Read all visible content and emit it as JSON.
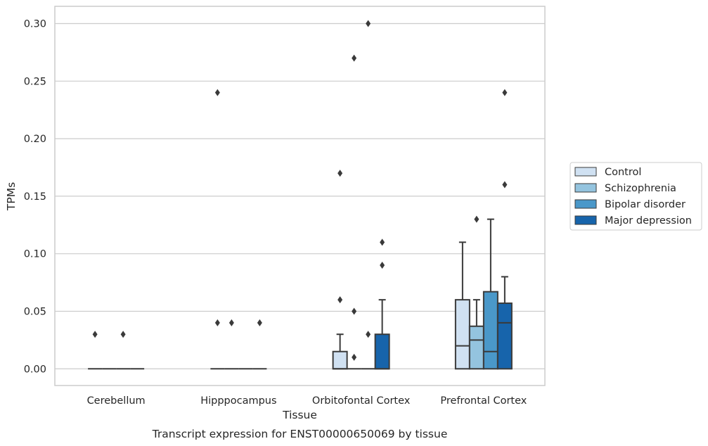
{
  "chart_data": {
    "type": "box",
    "title": "Transcript expression for ENST00000650069 by tissue",
    "xlabel": "Tissue",
    "ylabel": "TPMs",
    "ylim": [
      -0.0145,
      0.315
    ],
    "yticks": [
      "0.00",
      "0.05",
      "0.10",
      "0.15",
      "0.20",
      "0.25",
      "0.30"
    ],
    "categories": [
      "Cerebellum",
      "Hipppocampus",
      "Orbitofontal Cortex",
      "Prefrontal Cortex"
    ],
    "grid": true,
    "legend_position": "right",
    "colors": {
      "Control": "#d0e1f2",
      "Schizophrenia": "#94c4df",
      "Bipolar disorder": "#4a98c9",
      "Major depression": "#1764ab",
      "edge": "#3a3a3a",
      "grid": "#cccccc"
    },
    "series": [
      {
        "name": "Control",
        "boxes": [
          {
            "q1": 0,
            "median": 0,
            "q3": 0,
            "whislo": 0,
            "whishi": 0,
            "fliers": [
              0.03
            ]
          },
          {
            "q1": 0,
            "median": 0,
            "q3": 0,
            "whislo": 0,
            "whishi": 0,
            "fliers": [
              0.24,
              0.04
            ]
          },
          {
            "q1": 0,
            "median": 0,
            "q3": 0.015,
            "whislo": 0,
            "whishi": 0.03,
            "fliers": [
              0.17,
              0.06
            ]
          },
          {
            "q1": 0,
            "median": 0.02,
            "q3": 0.06,
            "whislo": 0,
            "whishi": 0.11,
            "fliers": []
          }
        ]
      },
      {
        "name": "Schizophrenia",
        "boxes": [
          {
            "q1": 0,
            "median": 0,
            "q3": 0,
            "whislo": 0,
            "whishi": 0,
            "fliers": []
          },
          {
            "q1": 0,
            "median": 0,
            "q3": 0,
            "whislo": 0,
            "whishi": 0,
            "fliers": [
              0.04
            ]
          },
          {
            "q1": 0,
            "median": 0,
            "q3": 0,
            "whislo": 0,
            "whishi": 0,
            "fliers": [
              0.27,
              0.05,
              0.01
            ]
          },
          {
            "q1": 0,
            "median": 0.025,
            "q3": 0.037,
            "whislo": 0,
            "whishi": 0.06,
            "fliers": [
              0.13
            ]
          }
        ]
      },
      {
        "name": "Bipolar disorder",
        "boxes": [
          {
            "q1": 0,
            "median": 0,
            "q3": 0,
            "whislo": 0,
            "whishi": 0,
            "fliers": [
              0.03
            ]
          },
          {
            "q1": 0,
            "median": 0,
            "q3": 0,
            "whislo": 0,
            "whishi": 0,
            "fliers": []
          },
          {
            "q1": 0,
            "median": 0,
            "q3": 0,
            "whislo": 0,
            "whishi": 0,
            "fliers": [
              0.3,
              0.03
            ]
          },
          {
            "q1": 0,
            "median": 0.015,
            "q3": 0.067,
            "whislo": 0,
            "whishi": 0.13,
            "fliers": []
          }
        ]
      },
      {
        "name": "Major depression",
        "boxes": [
          {
            "q1": 0,
            "median": 0,
            "q3": 0,
            "whislo": 0,
            "whishi": 0,
            "fliers": []
          },
          {
            "q1": 0,
            "median": 0,
            "q3": 0,
            "whislo": 0,
            "whishi": 0,
            "fliers": [
              0.04
            ]
          },
          {
            "q1": 0,
            "median": 0,
            "q3": 0.03,
            "whislo": 0,
            "whishi": 0.06,
            "fliers": [
              0.11,
              0.09
            ]
          },
          {
            "q1": 0,
            "median": 0.04,
            "q3": 0.057,
            "whislo": 0,
            "whishi": 0.08,
            "fliers": [
              0.24,
              0.16
            ]
          }
        ]
      }
    ]
  }
}
